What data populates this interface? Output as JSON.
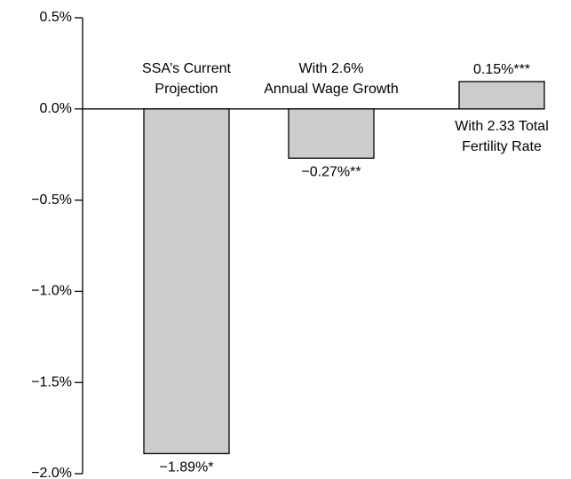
{
  "chart_data": {
    "type": "bar",
    "categories": [
      [
        "SSA’s Current",
        "Projection"
      ],
      [
        "With 2.6%",
        "Annual Wage Growth"
      ],
      [
        "With 2.33 Total",
        "Fertility Rate"
      ]
    ],
    "values": [
      -1.89,
      -0.27,
      0.15
    ],
    "value_labels": [
      "−1.89%*",
      "−0.27%**",
      "0.15%***"
    ],
    "color": "#cccccc",
    "ylim": [
      -2.0,
      0.5
    ],
    "yticks": [
      {
        "value": 0.5,
        "label": "0.5%"
      },
      {
        "value": 0.0,
        "label": "0.0%"
      },
      {
        "value": -0.5,
        "label": "−0.5%"
      },
      {
        "value": -1.0,
        "label": "−1.0%"
      },
      {
        "value": -1.5,
        "label": "−1.5%"
      },
      {
        "value": -2.0,
        "label": "−2.0%"
      }
    ]
  }
}
